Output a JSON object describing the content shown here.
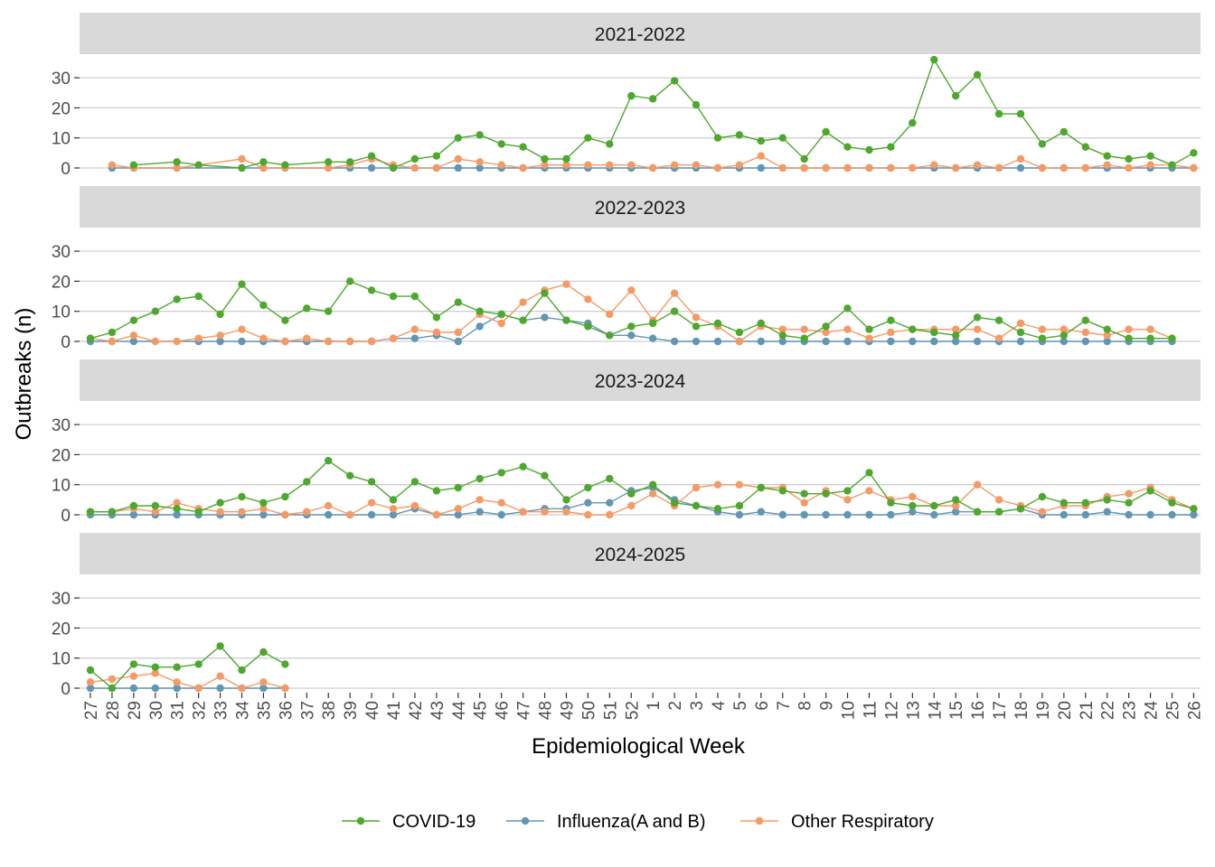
{
  "chart_data": {
    "type": "line",
    "xlabel": "Epidemiological Week",
    "ylabel": "Outbreaks (n)",
    "categories": [
      "27",
      "28",
      "29",
      "30",
      "31",
      "32",
      "33",
      "34",
      "35",
      "36",
      "37",
      "38",
      "39",
      "40",
      "41",
      "42",
      "43",
      "44",
      "45",
      "46",
      "47",
      "48",
      "49",
      "50",
      "51",
      "52",
      "1",
      "2",
      "3",
      "4",
      "5",
      "6",
      "7",
      "8",
      "9",
      "10",
      "11",
      "12",
      "13",
      "14",
      "15",
      "16",
      "17",
      "18",
      "19",
      "20",
      "21",
      "22",
      "23",
      "24",
      "25",
      "26"
    ],
    "legend": {
      "position": "bottom",
      "entries": [
        "COVID-19",
        "Influenza(A and B)",
        "Other Respiratory"
      ]
    },
    "colors": {
      "COVID-19": "#4ea72e",
      "Influenza(A and B)": "#6395b5",
      "Other Respiratory": "#f39a66"
    },
    "grid": true,
    "facets": [
      {
        "label": "2021-2022",
        "ylim": [
          0,
          37
        ],
        "yticks": [
          0,
          10,
          20,
          30
        ],
        "series": [
          {
            "name": "COVID-19",
            "values": [
              null,
              null,
              1,
              null,
              2,
              1,
              null,
              0,
              2,
              1,
              null,
              2,
              2,
              4,
              0,
              3,
              4,
              10,
              11,
              8,
              7,
              3,
              3,
              10,
              8,
              24,
              23,
              29,
              21,
              10,
              11,
              9,
              10,
              3,
              12,
              7,
              6,
              7,
              15,
              36,
              24,
              31,
              18,
              18,
              8,
              12,
              7,
              4,
              3,
              4,
              1,
              5
            ]
          },
          {
            "name": "Influenza(A and B)",
            "values": [
              null,
              0,
              0,
              null,
              0,
              null,
              null,
              0,
              0,
              0,
              null,
              0,
              0,
              0,
              0,
              0,
              0,
              0,
              0,
              0,
              0,
              0,
              0,
              0,
              0,
              0,
              0,
              0,
              0,
              0,
              0,
              0,
              0,
              0,
              0,
              0,
              0,
              0,
              0,
              0,
              0,
              0,
              0,
              0,
              0,
              0,
              0,
              0,
              0,
              0,
              0,
              0
            ]
          },
          {
            "name": "Other Respiratory",
            "values": [
              null,
              1,
              0,
              null,
              0,
              null,
              null,
              3,
              0,
              0,
              null,
              0,
              1,
              3,
              1,
              0,
              0,
              3,
              2,
              1,
              0,
              1,
              1,
              1,
              1,
              1,
              0,
              1,
              1,
              0,
              1,
              4,
              0,
              0,
              0,
              0,
              0,
              0,
              0,
              1,
              0,
              1,
              0,
              3,
              0,
              0,
              0,
              1,
              0,
              1,
              1,
              0
            ]
          }
        ]
      },
      {
        "label": "2022-2023",
        "ylim": [
          0,
          31
        ],
        "yticks": [
          0,
          10,
          20,
          30
        ],
        "series": [
          {
            "name": "COVID-19",
            "values": [
              1,
              3,
              7,
              10,
              14,
              15,
              9,
              19,
              12,
              7,
              11,
              10,
              20,
              17,
              15,
              15,
              8,
              13,
              10,
              9,
              7,
              16,
              7,
              5,
              2,
              5,
              6,
              10,
              5,
              6,
              3,
              6,
              2,
              1,
              5,
              11,
              4,
              7,
              4,
              3,
              2,
              8,
              7,
              3,
              1,
              2,
              7,
              4,
              1,
              1,
              1,
              null
            ]
          },
          {
            "name": "Influenza(A and B)",
            "values": [
              0,
              0,
              0,
              null,
              null,
              0,
              0,
              0,
              0,
              0,
              0,
              0,
              0,
              0,
              1,
              1,
              2,
              0,
              5,
              9,
              7,
              8,
              7,
              6,
              2,
              2,
              1,
              0,
              0,
              0,
              0,
              0,
              0,
              0,
              0,
              0,
              0,
              0,
              0,
              0,
              0,
              0,
              0,
              0,
              0,
              0,
              0,
              0,
              0,
              0,
              0,
              null
            ]
          },
          {
            "name": "Other Respiratory",
            "values": [
              1,
              0,
              2,
              0,
              0,
              1,
              2,
              4,
              1,
              0,
              1,
              0,
              0,
              0,
              1,
              4,
              3,
              3,
              9,
              6,
              13,
              17,
              19,
              14,
              9,
              17,
              7,
              16,
              8,
              5,
              0,
              5,
              4,
              4,
              3,
              4,
              1,
              3,
              4,
              4,
              4,
              4,
              1,
              6,
              4,
              4,
              3,
              2,
              4,
              4,
              1,
              null
            ]
          }
        ]
      },
      {
        "label": "2023-2024",
        "ylim": [
          0,
          31
        ],
        "yticks": [
          0,
          10,
          20,
          30
        ],
        "series": [
          {
            "name": "COVID-19",
            "values": [
              1,
              1,
              3,
              3,
              2,
              1,
              4,
              6,
              4,
              6,
              11,
              18,
              13,
              11,
              5,
              11,
              8,
              9,
              12,
              14,
              16,
              13,
              5,
              9,
              12,
              7,
              10,
              4,
              3,
              2,
              3,
              9,
              8,
              7,
              7,
              8,
              14,
              4,
              3,
              3,
              5,
              1,
              1,
              2,
              6,
              4,
              4,
              5,
              4,
              8,
              4,
              2
            ]
          },
          {
            "name": "Influenza(A and B)",
            "values": [
              0,
              0,
              0,
              0,
              0,
              0,
              0,
              0,
              0,
              0,
              0,
              0,
              0,
              0,
              0,
              2,
              0,
              0,
              1,
              0,
              1,
              2,
              2,
              4,
              4,
              8,
              9,
              5,
              3,
              1,
              0,
              1,
              0,
              0,
              0,
              0,
              0,
              0,
              1,
              0,
              1,
              1,
              1,
              2,
              0,
              0,
              0,
              1,
              0,
              0,
              0,
              0
            ]
          },
          {
            "name": "Other Respiratory",
            "values": [
              1,
              1,
              2,
              1,
              4,
              2,
              1,
              1,
              2,
              0,
              1,
              3,
              0,
              4,
              2,
              3,
              0,
              2,
              5,
              4,
              1,
              1,
              1,
              0,
              0,
              3,
              7,
              3,
              9,
              10,
              10,
              9,
              9,
              4,
              8,
              5,
              8,
              5,
              6,
              3,
              3,
              10,
              5,
              3,
              1,
              3,
              3,
              6,
              7,
              9,
              5,
              2
            ]
          }
        ]
      },
      {
        "label": "2024-2025",
        "ylim": [
          0,
          31
        ],
        "yticks": [
          0,
          10,
          20,
          30
        ],
        "series": [
          {
            "name": "COVID-19",
            "values": [
              6,
              0,
              8,
              7,
              7,
              8,
              14,
              6,
              12,
              8,
              null,
              null,
              null,
              null,
              null,
              null,
              null,
              null,
              null,
              null,
              null,
              null,
              null,
              null,
              null,
              null,
              null,
              null,
              null,
              null,
              null,
              null,
              null,
              null,
              null,
              null,
              null,
              null,
              null,
              null,
              null,
              null,
              null,
              null,
              null,
              null,
              null,
              null,
              null,
              null,
              null,
              null
            ]
          },
          {
            "name": "Influenza(A and B)",
            "values": [
              0,
              0,
              0,
              0,
              0,
              0,
              0,
              0,
              0,
              0,
              null,
              null,
              null,
              null,
              null,
              null,
              null,
              null,
              null,
              null,
              null,
              null,
              null,
              null,
              null,
              null,
              null,
              null,
              null,
              null,
              null,
              null,
              null,
              null,
              null,
              null,
              null,
              null,
              null,
              null,
              null,
              null,
              null,
              null,
              null,
              null,
              null,
              null,
              null,
              null,
              null,
              null
            ]
          },
          {
            "name": "Other Respiratory",
            "values": [
              2,
              3,
              4,
              5,
              2,
              0,
              4,
              0,
              2,
              0,
              null,
              null,
              null,
              null,
              null,
              null,
              null,
              null,
              null,
              null,
              null,
              null,
              null,
              null,
              null,
              null,
              null,
              null,
              null,
              null,
              null,
              null,
              null,
              null,
              null,
              null,
              null,
              null,
              null,
              null,
              null,
              null,
              null,
              null,
              null,
              null,
              null,
              null,
              null,
              null,
              null,
              null
            ]
          }
        ]
      }
    ]
  }
}
